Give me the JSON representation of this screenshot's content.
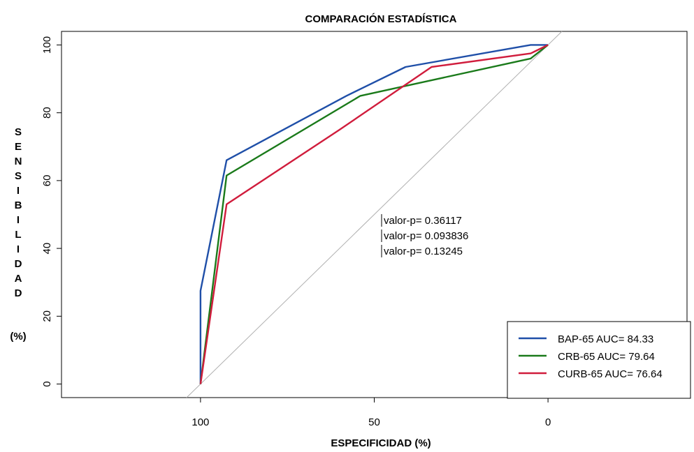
{
  "chart_data": {
    "type": "line",
    "title": "COMPARACIÓN ESTADÍSTICA",
    "xlabel": "ESPECIFICIDAD (%)",
    "ylabel_letters": [
      "S",
      "E",
      "N",
      "S",
      "I",
      "B",
      "I",
      "L",
      "I",
      "D",
      "A",
      "D"
    ],
    "ylabel_unit": "(%)",
    "xlim": [
      140,
      -40
    ],
    "ylim": [
      -4,
      104
    ],
    "x_reversed": true,
    "x_ticks": [
      100,
      50,
      0
    ],
    "y_ticks": [
      0,
      20,
      40,
      60,
      80,
      100
    ],
    "diagonal": true,
    "series": [
      {
        "name": "BAP-65",
        "label": "BAP-65  AUC= 84.33",
        "color": "#1f4fa8",
        "x": [
          100,
          100,
          92.5,
          58,
          41,
          5,
          0
        ],
        "y": [
          0,
          27.5,
          66,
          85,
          93.5,
          100,
          100
        ]
      },
      {
        "name": "CRB-65",
        "label": "CRB-65 AUC= 79.64",
        "color": "#1a7a1a",
        "x": [
          100,
          92.5,
          54,
          5,
          0
        ],
        "y": [
          0,
          61.5,
          85,
          96,
          100
        ]
      },
      {
        "name": "CURB-65",
        "label": "CURB-65 AUC= 76.64",
        "color": "#d01c3c",
        "x": [
          100,
          92.5,
          60,
          33.5,
          5,
          0
        ],
        "y": [
          0,
          53,
          75,
          93.5,
          97.5,
          100
        ]
      }
    ],
    "annotations": [
      "valor-p= 0.36117",
      "valor-p= 0.093836",
      "valor-p= 0.13245"
    ],
    "legend_position": "bottom-right"
  }
}
